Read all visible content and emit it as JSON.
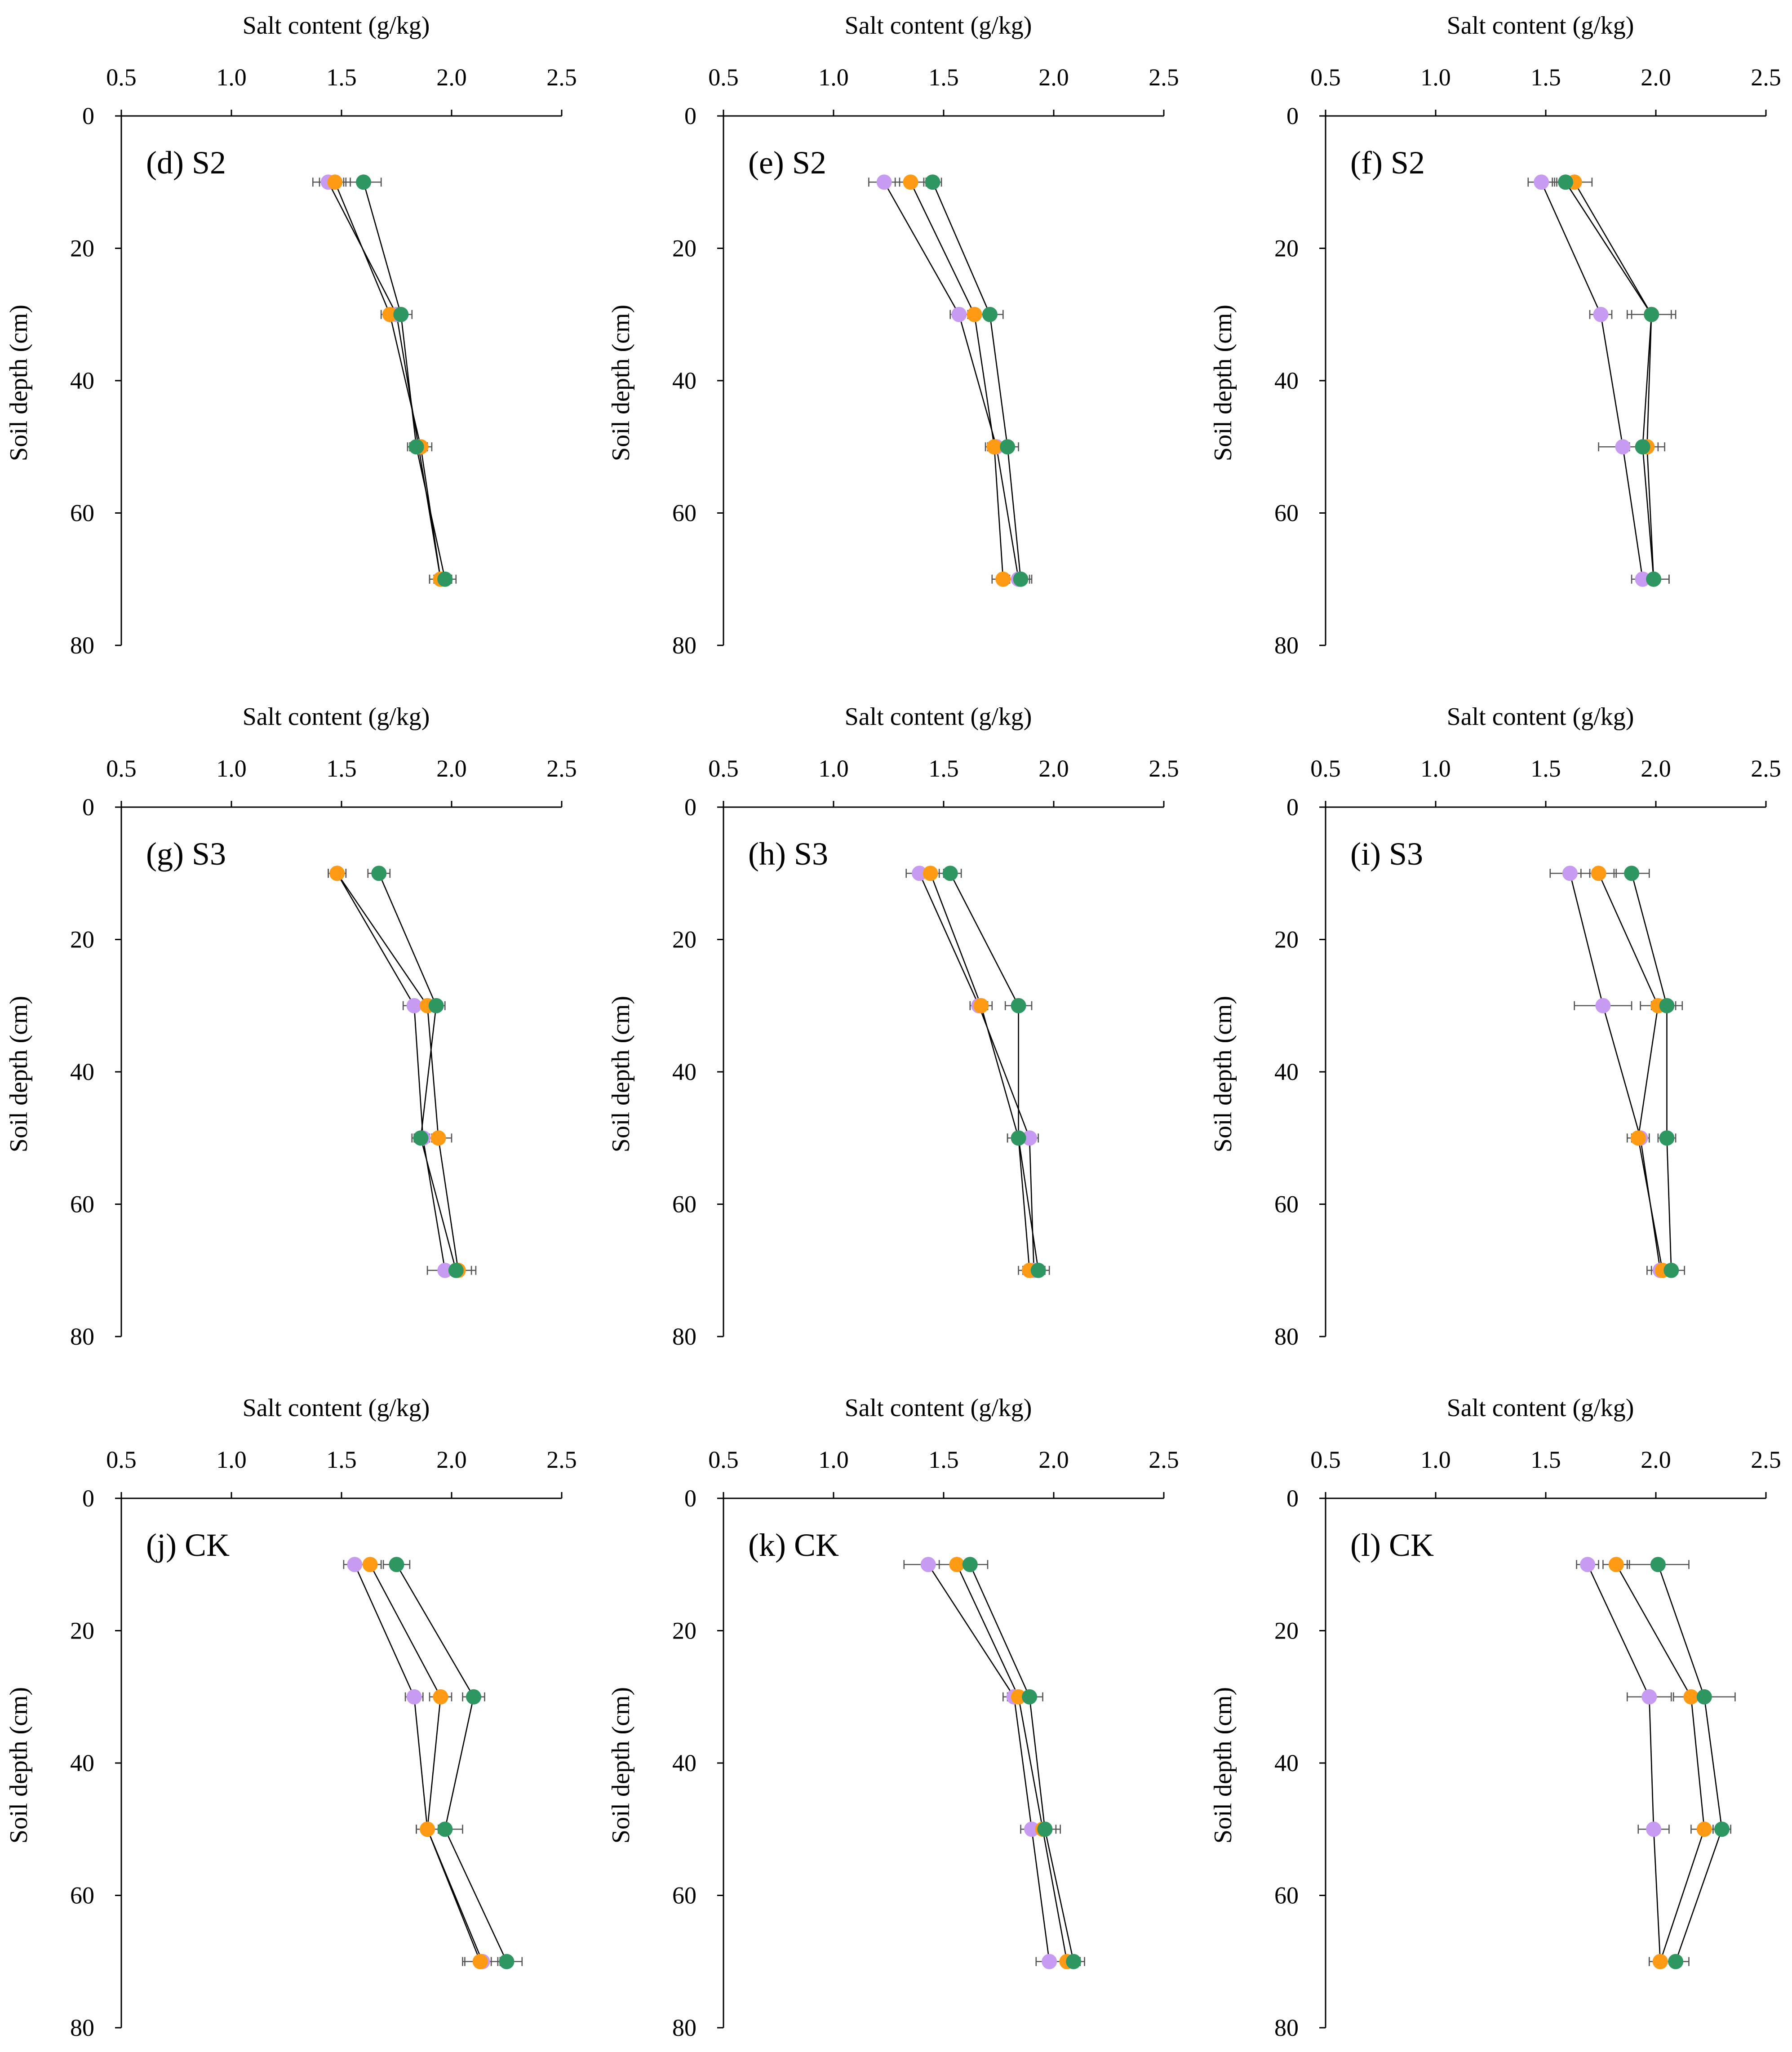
{
  "figure": {
    "colors": {
      "purple": "#c79bf2",
      "orange": "#ff9a14",
      "green": "#2e9660"
    }
  },
  "chart_data": [
    {
      "type": "line",
      "panel_label": "(d) S2",
      "xlabel": "Salt content (g/kg)",
      "ylabel": "Soil depth (cm)",
      "xlim": [
        0.5,
        2.5
      ],
      "ylim": [
        0,
        80
      ],
      "xticks": [
        "0.5",
        "1.0",
        "1.5",
        "2.0",
        "2.5"
      ],
      "yticks": [
        "0",
        "20",
        "40",
        "60",
        "80"
      ],
      "depths": [
        10,
        30,
        50,
        70
      ],
      "series": [
        {
          "name": "purple",
          "color": "#c79bf2",
          "values": [
            1.44,
            1.75,
            1.85,
            1.95
          ],
          "errors": [
            0.07,
            0.04,
            0.04,
            0.05
          ]
        },
        {
          "name": "orange",
          "color": "#ff9a14",
          "values": [
            1.47,
            1.72,
            1.86,
            1.95
          ],
          "errors": [
            0.07,
            0.04,
            0.05,
            0.05
          ]
        },
        {
          "name": "green",
          "color": "#2e9660",
          "values": [
            1.6,
            1.77,
            1.84,
            1.97
          ],
          "errors": [
            0.08,
            0.05,
            0.04,
            0.05
          ]
        }
      ]
    },
    {
      "type": "line",
      "panel_label": "(e) S2",
      "xlabel": "Salt content (g/kg)",
      "ylabel": "Soil depth (cm)",
      "xlim": [
        0.5,
        2.5
      ],
      "ylim": [
        0,
        80
      ],
      "xticks": [
        "0.5",
        "1.0",
        "1.5",
        "2.0",
        "2.5"
      ],
      "yticks": [
        "0",
        "20",
        "40",
        "60",
        "80"
      ],
      "depths": [
        10,
        30,
        50,
        70
      ],
      "series": [
        {
          "name": "purple",
          "color": "#c79bf2",
          "values": [
            1.23,
            1.57,
            1.74,
            1.84
          ],
          "errors": [
            0.07,
            0.04,
            0.04,
            0.05
          ]
        },
        {
          "name": "orange",
          "color": "#ff9a14",
          "values": [
            1.35,
            1.64,
            1.73,
            1.77
          ],
          "errors": [
            0.07,
            0.05,
            0.04,
            0.05
          ]
        },
        {
          "name": "green",
          "color": "#2e9660",
          "values": [
            1.45,
            1.71,
            1.79,
            1.85
          ],
          "errors": [
            0.04,
            0.06,
            0.05,
            0.05
          ]
        }
      ]
    },
    {
      "type": "line",
      "panel_label": "(f) S2",
      "xlabel": "Salt content (g/kg)",
      "ylabel": "Soil depth (cm)",
      "xlim": [
        0.5,
        2.5
      ],
      "ylim": [
        0,
        80
      ],
      "xticks": [
        "0.5",
        "1.0",
        "1.5",
        "2.0",
        "2.5"
      ],
      "yticks": [
        "0",
        "20",
        "40",
        "60",
        "80"
      ],
      "depths": [
        10,
        30,
        50,
        70
      ],
      "series": [
        {
          "name": "purple",
          "color": "#c79bf2",
          "values": [
            1.48,
            1.75,
            1.85,
            1.94
          ],
          "errors": [
            0.06,
            0.05,
            0.11,
            0.05
          ]
        },
        {
          "name": "orange",
          "color": "#ff9a14",
          "values": [
            1.63,
            1.98,
            1.96,
            1.99
          ],
          "errors": [
            0.08,
            0.11,
            0.08,
            0.07
          ]
        },
        {
          "name": "green",
          "color": "#2e9660",
          "values": [
            1.59,
            1.98,
            1.94,
            1.99
          ],
          "errors": [
            0.06,
            0.09,
            0.07,
            0.07
          ]
        }
      ]
    },
    {
      "type": "line",
      "panel_label": "(g) S3",
      "xlabel": "Salt content (g/kg)",
      "ylabel": "Soil depth (cm)",
      "xlim": [
        0.5,
        2.5
      ],
      "ylim": [
        0,
        80
      ],
      "xticks": [
        "0.5",
        "1.0",
        "1.5",
        "2.0",
        "2.5"
      ],
      "yticks": [
        "0",
        "20",
        "40",
        "60",
        "80"
      ],
      "depths": [
        10,
        30,
        50,
        70
      ],
      "series": [
        {
          "name": "purple",
          "color": "#c79bf2",
          "values": [
            1.48,
            1.83,
            1.87,
            1.97
          ],
          "errors": [
            0.04,
            0.05,
            0.04,
            0.08
          ]
        },
        {
          "name": "orange",
          "color": "#ff9a14",
          "values": [
            1.48,
            1.89,
            1.94,
            2.03
          ],
          "errors": [
            0.04,
            0.05,
            0.06,
            0.08
          ]
        },
        {
          "name": "green",
          "color": "#2e9660",
          "values": [
            1.67,
            1.93,
            1.86,
            2.02
          ],
          "errors": [
            0.05,
            0.04,
            0.04,
            0.07
          ]
        }
      ]
    },
    {
      "type": "line",
      "panel_label": "(h) S3",
      "xlabel": "Salt content (g/kg)",
      "ylabel": "Soil depth (cm)",
      "xlim": [
        0.5,
        2.5
      ],
      "ylim": [
        0,
        80
      ],
      "xticks": [
        "0.5",
        "1.0",
        "1.5",
        "2.0",
        "2.5"
      ],
      "yticks": [
        "0",
        "20",
        "40",
        "60",
        "80"
      ],
      "depths": [
        10,
        30,
        50,
        70
      ],
      "series": [
        {
          "name": "purple",
          "color": "#c79bf2",
          "values": [
            1.39,
            1.66,
            1.89,
            1.91
          ],
          "errors": [
            0.06,
            0.04,
            0.04,
            0.05
          ]
        },
        {
          "name": "orange",
          "color": "#ff9a14",
          "values": [
            1.44,
            1.67,
            1.84,
            1.89
          ],
          "errors": [
            0.06,
            0.05,
            0.05,
            0.05
          ]
        },
        {
          "name": "green",
          "color": "#2e9660",
          "values": [
            1.53,
            1.84,
            1.84,
            1.93
          ],
          "errors": [
            0.05,
            0.06,
            0.05,
            0.05
          ]
        }
      ]
    },
    {
      "type": "line",
      "panel_label": "(i) S3",
      "xlabel": "Salt content (g/kg)",
      "ylabel": "Soil depth (cm)",
      "xlim": [
        0.5,
        2.5
      ],
      "ylim": [
        0,
        80
      ],
      "xticks": [
        "0.5",
        "1.0",
        "1.5",
        "2.0",
        "2.5"
      ],
      "yticks": [
        "0",
        "20",
        "40",
        "60",
        "80"
      ],
      "depths": [
        10,
        30,
        50,
        70
      ],
      "series": [
        {
          "name": "purple",
          "color": "#c79bf2",
          "values": [
            1.61,
            1.76,
            1.93,
            2.02
          ],
          "errors": [
            0.09,
            0.13,
            0.04,
            0.06
          ]
        },
        {
          "name": "orange",
          "color": "#ff9a14",
          "values": [
            1.74,
            2.01,
            1.92,
            2.03
          ],
          "errors": [
            0.08,
            0.08,
            0.05,
            0.05
          ]
        },
        {
          "name": "green",
          "color": "#2e9660",
          "values": [
            1.89,
            2.05,
            2.05,
            2.07
          ],
          "errors": [
            0.08,
            0.07,
            0.04,
            0.06
          ]
        }
      ]
    },
    {
      "type": "line",
      "panel_label": "(j) CK",
      "xlabel": "Salt content (g/kg)",
      "ylabel": "Soil depth (cm)",
      "xlim": [
        0.5,
        2.5
      ],
      "ylim": [
        0,
        80
      ],
      "xticks": [
        "0.5",
        "1.0",
        "1.5",
        "2.0",
        "2.5"
      ],
      "yticks": [
        "0",
        "20",
        "40",
        "60",
        "80"
      ],
      "depths": [
        10,
        30,
        50,
        70
      ],
      "series": [
        {
          "name": "purple",
          "color": "#c79bf2",
          "values": [
            1.56,
            1.83,
            1.89,
            2.14
          ],
          "errors": [
            0.05,
            0.04,
            0.05,
            0.08
          ]
        },
        {
          "name": "orange",
          "color": "#ff9a14",
          "values": [
            1.63,
            1.95,
            1.89,
            2.13
          ],
          "errors": [
            0.05,
            0.05,
            0.05,
            0.08
          ]
        },
        {
          "name": "green",
          "color": "#2e9660",
          "values": [
            1.75,
            2.1,
            1.97,
            2.25
          ],
          "errors": [
            0.06,
            0.05,
            0.08,
            0.07
          ]
        }
      ]
    },
    {
      "type": "line",
      "panel_label": "(k) CK",
      "xlabel": "Salt content (g/kg)",
      "ylabel": "Soil depth (cm)",
      "xlim": [
        0.5,
        2.5
      ],
      "ylim": [
        0,
        80
      ],
      "xticks": [
        "0.5",
        "1.0",
        "1.5",
        "2.0",
        "2.5"
      ],
      "yticks": [
        "0",
        "20",
        "40",
        "60",
        "80"
      ],
      "depths": [
        10,
        30,
        50,
        70
      ],
      "series": [
        {
          "name": "purple",
          "color": "#c79bf2",
          "values": [
            1.43,
            1.82,
            1.9,
            1.98
          ],
          "errors": [
            0.11,
            0.05,
            0.05,
            0.06
          ]
        },
        {
          "name": "orange",
          "color": "#ff9a14",
          "values": [
            1.56,
            1.84,
            1.95,
            2.06
          ],
          "errors": [
            0.08,
            0.05,
            0.06,
            0.06
          ]
        },
        {
          "name": "green",
          "color": "#2e9660",
          "values": [
            1.62,
            1.89,
            1.96,
            2.09
          ],
          "errors": [
            0.08,
            0.06,
            0.07,
            0.05
          ]
        }
      ]
    },
    {
      "type": "line",
      "panel_label": "(l) CK",
      "xlabel": "Salt content (g/kg)",
      "ylabel": "Soil depth (cm)",
      "xlim": [
        0.5,
        2.5
      ],
      "ylim": [
        0,
        80
      ],
      "xticks": [
        "0.5",
        "1.0",
        "1.5",
        "2.0",
        "2.5"
      ],
      "yticks": [
        "0",
        "20",
        "40",
        "60",
        "80"
      ],
      "depths": [
        10,
        30,
        50,
        70
      ],
      "series": [
        {
          "name": "purple",
          "color": "#c79bf2",
          "values": [
            1.69,
            1.97,
            1.99,
            2.02
          ],
          "errors": [
            0.05,
            0.1,
            0.07,
            0.05
          ]
        },
        {
          "name": "orange",
          "color": "#ff9a14",
          "values": [
            1.82,
            2.16,
            2.22,
            2.02
          ],
          "errors": [
            0.06,
            0.08,
            0.06,
            0.05
          ]
        },
        {
          "name": "green",
          "color": "#2e9660",
          "values": [
            2.01,
            2.22,
            2.3,
            2.09
          ],
          "errors": [
            0.14,
            0.14,
            0.04,
            0.06
          ]
        }
      ]
    }
  ]
}
